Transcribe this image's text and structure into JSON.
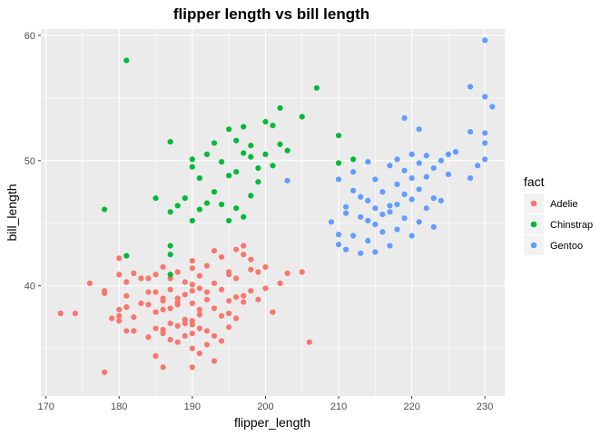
{
  "chart_data": {
    "type": "scatter",
    "title": "flipper length vs bill length",
    "xlabel": "flipper_length",
    "ylabel": "bill_length",
    "xlim": [
      169.3,
      232.7
    ],
    "ylim": [
      31.2,
      60.5
    ],
    "x_ticks": [
      170,
      180,
      190,
      200,
      210,
      220,
      230
    ],
    "y_ticks": [
      40,
      50,
      60
    ],
    "x_tick_labels": [
      "170",
      "180",
      "190",
      "200",
      "210",
      "220",
      "230"
    ],
    "y_tick_labels": [
      "40",
      "50",
      "60"
    ],
    "grid": true,
    "legend": {
      "title": "fact",
      "position": "right"
    },
    "series": [
      {
        "name": "Adelie",
        "color": "#F8766D",
        "points": [
          [
            172,
            37.8
          ],
          [
            174,
            37.8
          ],
          [
            176,
            40.2
          ],
          [
            178,
            33.1
          ],
          [
            178,
            39.4
          ],
          [
            178,
            39.6
          ],
          [
            179,
            37.4
          ],
          [
            180,
            37.6
          ],
          [
            180,
            42.2
          ],
          [
            180,
            40.9
          ],
          [
            180,
            37.2
          ],
          [
            180,
            38.1
          ],
          [
            181,
            36.4
          ],
          [
            181,
            38.3
          ],
          [
            181,
            40.3
          ],
          [
            181,
            39.2
          ],
          [
            182,
            36.4
          ],
          [
            182,
            37.5
          ],
          [
            182,
            41.0
          ],
          [
            183,
            40.6
          ],
          [
            183,
            38.6
          ],
          [
            184,
            39.5
          ],
          [
            184,
            35.9
          ],
          [
            184,
            38.5
          ],
          [
            184,
            40.6
          ],
          [
            185,
            34.4
          ],
          [
            185,
            36.6
          ],
          [
            185,
            37.9
          ],
          [
            185,
            39.5
          ],
          [
            185,
            40.9
          ],
          [
            186,
            38.8
          ],
          [
            186,
            36.2
          ],
          [
            186,
            38.1
          ],
          [
            186,
            39.0
          ],
          [
            186,
            41.5
          ],
          [
            186,
            36.5
          ],
          [
            186,
            33.5
          ],
          [
            187,
            35.7
          ],
          [
            187,
            38.2
          ],
          [
            187,
            40.6
          ],
          [
            187,
            37.0
          ],
          [
            187,
            39.7
          ],
          [
            188,
            35.5
          ],
          [
            188,
            36.8
          ],
          [
            188,
            38.7
          ],
          [
            188,
            39.0
          ],
          [
            188,
            41.1
          ],
          [
            188,
            38.5
          ],
          [
            189,
            37.0
          ],
          [
            189,
            39.3
          ],
          [
            189,
            40.3
          ],
          [
            189,
            37.3
          ],
          [
            189,
            36.0
          ],
          [
            190,
            35.0
          ],
          [
            190,
            36.9
          ],
          [
            190,
            38.6
          ],
          [
            190,
            39.6
          ],
          [
            190,
            40.1
          ],
          [
            190,
            41.4
          ],
          [
            190,
            37.2
          ],
          [
            190,
            36.2
          ],
          [
            190,
            33.5
          ],
          [
            190,
            42.0
          ],
          [
            191,
            34.6
          ],
          [
            191,
            37.7
          ],
          [
            191,
            39.8
          ],
          [
            191,
            40.8
          ],
          [
            191,
            36.6
          ],
          [
            191,
            38.1
          ],
          [
            192,
            36.4
          ],
          [
            192,
            38.9
          ],
          [
            192,
            41.6
          ],
          [
            192,
            35.3
          ],
          [
            192,
            39.5
          ],
          [
            193,
            36.0
          ],
          [
            193,
            38.2
          ],
          [
            193,
            40.2
          ],
          [
            193,
            42.8
          ],
          [
            193,
            34.0
          ],
          [
            194,
            37.6
          ],
          [
            194,
            39.7
          ],
          [
            194,
            42.3
          ],
          [
            194,
            35.6
          ],
          [
            195,
            37.8
          ],
          [
            195,
            40.9
          ],
          [
            195,
            38.8
          ],
          [
            195,
            36.7
          ],
          [
            195,
            41.1
          ],
          [
            196,
            40.6
          ],
          [
            196,
            39.1
          ],
          [
            196,
            37.4
          ],
          [
            196,
            42.9
          ],
          [
            197,
            39.2
          ],
          [
            197,
            42.5
          ],
          [
            197,
            43.2
          ],
          [
            197,
            38.7
          ],
          [
            198,
            41.3
          ],
          [
            198,
            39.6
          ],
          [
            198,
            42.1
          ],
          [
            199,
            41.1
          ],
          [
            199,
            38.9
          ],
          [
            200,
            39.8
          ],
          [
            200,
            41.5
          ],
          [
            201,
            37.9
          ],
          [
            202,
            40.2
          ],
          [
            203,
            41.0
          ],
          [
            205,
            41.1
          ],
          [
            206,
            35.5
          ]
        ]
      },
      {
        "name": "Chinstrap",
        "color": "#00BA38",
        "points": [
          [
            178,
            46.1
          ],
          [
            181,
            42.4
          ],
          [
            181,
            58.0
          ],
          [
            185,
            47.0
          ],
          [
            187,
            40.9
          ],
          [
            187,
            42.5
          ],
          [
            187,
            43.2
          ],
          [
            187,
            45.9
          ],
          [
            187,
            51.5
          ],
          [
            188,
            46.4
          ],
          [
            189,
            47.0
          ],
          [
            190,
            45.2
          ],
          [
            190,
            49.5
          ],
          [
            190,
            50.1
          ],
          [
            191,
            46.1
          ],
          [
            191,
            48.6
          ],
          [
            192,
            46.6
          ],
          [
            192,
            50.5
          ],
          [
            193,
            47.5
          ],
          [
            193,
            51.4
          ],
          [
            194,
            46.5
          ],
          [
            194,
            49.9
          ],
          [
            195,
            45.2
          ],
          [
            195,
            48.8
          ],
          [
            195,
            52.5
          ],
          [
            196,
            46.2
          ],
          [
            196,
            49.1
          ],
          [
            196,
            51.6
          ],
          [
            197,
            45.5
          ],
          [
            197,
            50.6
          ],
          [
            197,
            52.7
          ],
          [
            198,
            47.2
          ],
          [
            198,
            50.3
          ],
          [
            198,
            51.2
          ],
          [
            199,
            48.3
          ],
          [
            199,
            49.4
          ],
          [
            200,
            50.5
          ],
          [
            200,
            53.1
          ],
          [
            201,
            49.6
          ],
          [
            201,
            52.8
          ],
          [
            202,
            54.2
          ],
          [
            202,
            51.3
          ],
          [
            203,
            50.8
          ],
          [
            205,
            53.5
          ],
          [
            207,
            55.8
          ],
          [
            210,
            49.8
          ],
          [
            210,
            52.0
          ],
          [
            212,
            50.1
          ]
        ]
      },
      {
        "name": "Gentoo",
        "color": "#619CFF",
        "points": [
          [
            203,
            48.4
          ],
          [
            209,
            45.1
          ],
          [
            210,
            43.3
          ],
          [
            210,
            48.5
          ],
          [
            210,
            44.1
          ],
          [
            211,
            42.9
          ],
          [
            211,
            46.3
          ],
          [
            211,
            45.8
          ],
          [
            212,
            49.1
          ],
          [
            212,
            44.0
          ],
          [
            212,
            47.6
          ],
          [
            213,
            45.5
          ],
          [
            213,
            42.6
          ],
          [
            213,
            47.1
          ],
          [
            214,
            43.6
          ],
          [
            214,
            45.2
          ],
          [
            214,
            49.9
          ],
          [
            214,
            46.8
          ],
          [
            215,
            44.9
          ],
          [
            215,
            46.2
          ],
          [
            215,
            48.5
          ],
          [
            215,
            42.7
          ],
          [
            216,
            45.7
          ],
          [
            216,
            47.5
          ],
          [
            216,
            44.3
          ],
          [
            217,
            46.4
          ],
          [
            217,
            43.2
          ],
          [
            217,
            49.6
          ],
          [
            217,
            45.9
          ],
          [
            218,
            46.5
          ],
          [
            218,
            48.1
          ],
          [
            218,
            44.5
          ],
          [
            218,
            50.1
          ],
          [
            219,
            45.4
          ],
          [
            219,
            47.3
          ],
          [
            219,
            49.2
          ],
          [
            219,
            53.4
          ],
          [
            220,
            46.9
          ],
          [
            220,
            44.0
          ],
          [
            220,
            48.6
          ],
          [
            220,
            50.5
          ],
          [
            221,
            45.1
          ],
          [
            221,
            47.7
          ],
          [
            221,
            49.8
          ],
          [
            221,
            52.5
          ],
          [
            222,
            46.2
          ],
          [
            222,
            48.7
          ],
          [
            222,
            50.4
          ],
          [
            223,
            44.7
          ],
          [
            223,
            47.0
          ],
          [
            223,
            49.4
          ],
          [
            224,
            46.8
          ],
          [
            224,
            50.0
          ],
          [
            225,
            48.9
          ],
          [
            225,
            50.5
          ],
          [
            226,
            50.7
          ],
          [
            228,
            48.6
          ],
          [
            228,
            52.3
          ],
          [
            228,
            55.9
          ],
          [
            229,
            49.6
          ],
          [
            230,
            50.1
          ],
          [
            230,
            51.4
          ],
          [
            230,
            52.2
          ],
          [
            230,
            55.1
          ],
          [
            230,
            59.6
          ],
          [
            231,
            54.3
          ]
        ]
      }
    ]
  }
}
